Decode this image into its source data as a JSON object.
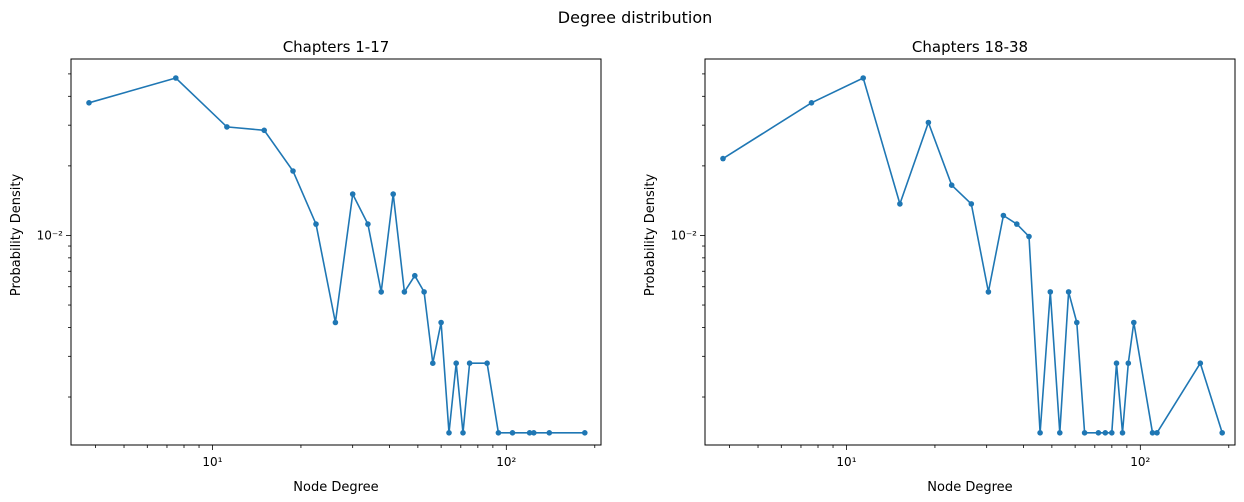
{
  "figure": {
    "title": "Degree distribution"
  },
  "chart_data": [
    {
      "type": "line",
      "title": "Chapters 1-17",
      "xlabel": "Node Degree",
      "ylabel": "Probability Density",
      "xscale": "log",
      "yscale": "log",
      "xlim": [
        3.3,
        210
      ],
      "ylim": [
        0.00124,
        0.058
      ],
      "xticks": [
        {
          "value": 10,
          "label": "10¹"
        },
        {
          "value": 100,
          "label": "10²"
        }
      ],
      "yticks": [
        {
          "value": 0.01,
          "label": "10⁻²"
        }
      ],
      "grid": false,
      "color": "#1f77b4",
      "x": [
        3.8,
        7.5,
        11.2,
        15,
        18.8,
        22.5,
        26.2,
        30,
        33.8,
        37.5,
        41.2,
        45,
        48.8,
        52.5,
        56.2,
        60,
        63.8,
        67.5,
        71.2,
        75,
        86,
        94,
        105,
        120,
        124,
        140,
        185
      ],
      "y": [
        0.0375,
        0.048,
        0.0295,
        0.0285,
        0.019,
        0.0112,
        0.0042,
        0.0151,
        0.0112,
        0.0057,
        0.0151,
        0.0057,
        0.0067,
        0.0057,
        0.0028,
        0.0042,
        0.0014,
        0.0028,
        0.0014,
        0.0028,
        0.0028,
        0.0014,
        0.0014,
        0.0014,
        0.0014,
        0.0014,
        0.0014
      ]
    },
    {
      "type": "line",
      "title": "Chapters 18-38",
      "xlabel": "Node Degree",
      "ylabel": "Probability Density",
      "xscale": "log",
      "yscale": "log",
      "xlim": [
        3.3,
        210
      ],
      "ylim": [
        0.00124,
        0.058
      ],
      "xticks": [
        {
          "value": 10,
          "label": "10¹"
        },
        {
          "value": 100,
          "label": "10²"
        }
      ],
      "yticks": [
        {
          "value": 0.01,
          "label": "10⁻²"
        }
      ],
      "grid": false,
      "color": "#1f77b4",
      "x": [
        3.8,
        7.6,
        11.4,
        15.2,
        19,
        22.8,
        26.6,
        30.4,
        34.2,
        38,
        41.8,
        45.6,
        49.4,
        53.2,
        57,
        60.8,
        64.6,
        72,
        76,
        80,
        83,
        87,
        91,
        95,
        110,
        114,
        160,
        190
      ],
      "y": [
        0.0215,
        0.0375,
        0.048,
        0.0137,
        0.0308,
        0.0165,
        0.0137,
        0.0057,
        0.0122,
        0.0112,
        0.0099,
        0.0014,
        0.0057,
        0.0014,
        0.0057,
        0.0042,
        0.0014,
        0.0014,
        0.0014,
        0.0014,
        0.0028,
        0.0014,
        0.0028,
        0.0042,
        0.0014,
        0.0014,
        0.0028,
        0.0014
      ]
    }
  ]
}
